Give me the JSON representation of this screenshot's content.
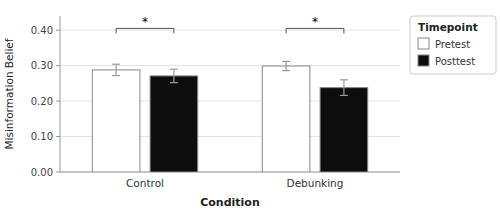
{
  "chart_data": {
    "type": "bar",
    "categories": [
      "Control",
      "Debunking"
    ],
    "series": [
      {
        "name": "Pretest",
        "color": "#ffffff",
        "values": [
          0.288,
          0.299
        ],
        "errors": [
          0.016,
          0.013
        ]
      },
      {
        "name": "Posttest",
        "color": "#0d0d0d",
        "values": [
          0.271,
          0.238
        ],
        "errors": [
          0.019,
          0.022
        ]
      }
    ],
    "xlabel": "Condition",
    "ylabel": "Misinformation Belief",
    "legend_title": "Timepoint",
    "legend": "right",
    "grid": true,
    "ylim": [
      0.0,
      0.44
    ],
    "yticks": [
      {
        "value": 0.0,
        "label": "0.00"
      },
      {
        "value": 0.1,
        "label": "0.10"
      },
      {
        "value": 0.2,
        "label": "0.20"
      },
      {
        "value": 0.3,
        "label": "0.30"
      },
      {
        "value": 0.4,
        "label": "0.40"
      }
    ],
    "annotations": [
      {
        "text": "*",
        "category": "Control",
        "y": 0.405
      },
      {
        "text": "*",
        "category": "Debunking",
        "y": 0.405
      }
    ]
  }
}
